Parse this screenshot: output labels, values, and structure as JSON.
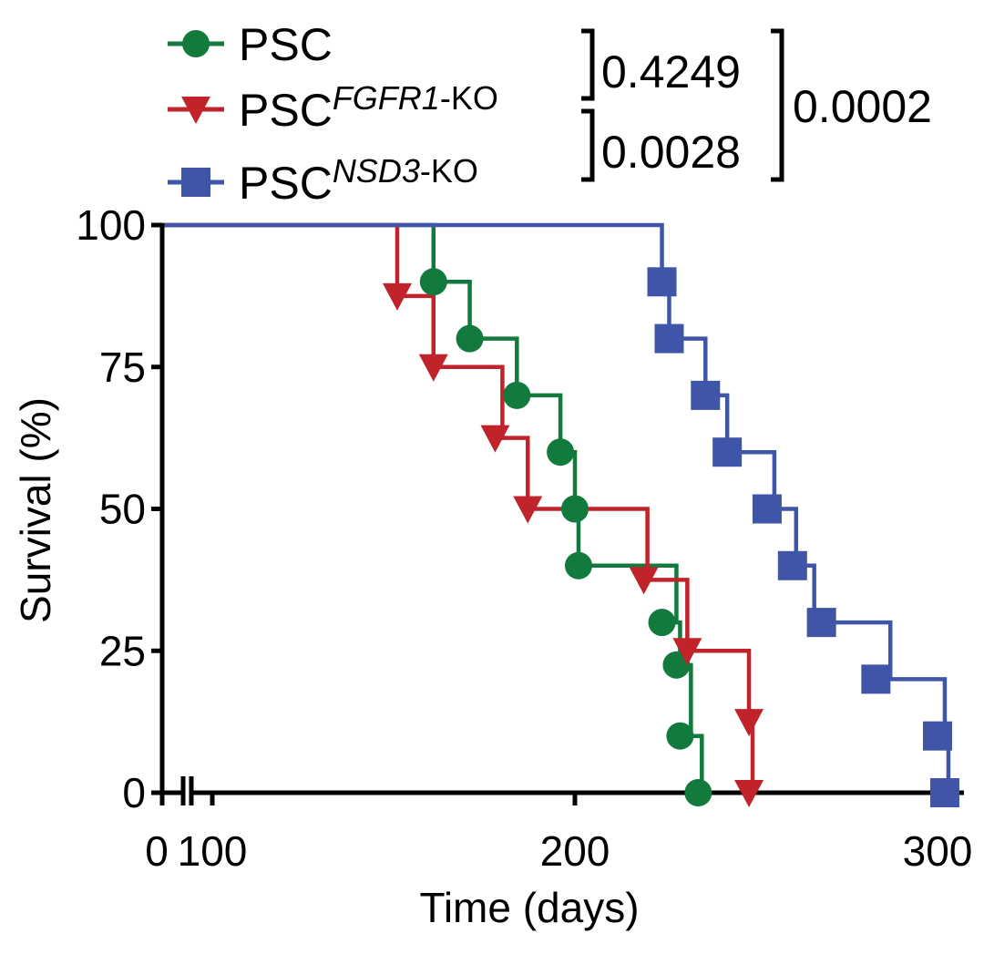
{
  "chart_data": {
    "type": "line",
    "subtype": "kaplan-meier-survival",
    "title": "",
    "xlabel": "Time (days)",
    "ylabel": "Survival (%)",
    "xlim": [
      0,
      310
    ],
    "ylim": [
      0,
      100
    ],
    "x_axis_break": [
      0,
      100
    ],
    "x_ticks": [
      0,
      100,
      200,
      300
    ],
    "x_tick_labels": [
      "0",
      "100",
      "200",
      "300"
    ],
    "y_ticks": [
      0,
      25,
      50,
      75,
      100
    ],
    "y_tick_labels": [
      "0",
      "25",
      "50",
      "75",
      "100"
    ],
    "grid": false,
    "legend_position": "top-left",
    "series": [
      {
        "name": "PSC",
        "label_main": "PSC",
        "label_super": "",
        "color": "#137a3e",
        "marker": "circle",
        "steps": [
          [
            0,
            100
          ],
          [
            161,
            90
          ],
          [
            171,
            80
          ],
          [
            184,
            70
          ],
          [
            196,
            60
          ],
          [
            200,
            50
          ],
          [
            201,
            40
          ],
          [
            228,
            30
          ],
          [
            229,
            22.5
          ],
          [
            232,
            10
          ],
          [
            235,
            0
          ]
        ],
        "markers": [
          [
            161,
            90
          ],
          [
            171,
            80
          ],
          [
            184,
            70
          ],
          [
            196,
            60
          ],
          [
            200,
            50
          ],
          [
            201,
            40
          ],
          [
            224,
            30
          ],
          [
            228,
            22.5
          ],
          [
            229,
            10
          ],
          [
            234,
            0
          ]
        ]
      },
      {
        "name": "PSC FGFR1-KO",
        "label_main": "PSC",
        "label_super": "FGFR1",
        "label_suffix": "-KO",
        "color": "#c1232b",
        "marker": "triangle-down",
        "steps": [
          [
            0,
            100
          ],
          [
            151,
            87.5
          ],
          [
            161,
            75
          ],
          [
            180,
            62.5
          ],
          [
            187,
            50
          ],
          [
            220,
            37.5
          ],
          [
            231,
            25
          ],
          [
            248,
            12.5
          ],
          [
            249,
            0
          ]
        ],
        "markers": [
          [
            151,
            87.5
          ],
          [
            161,
            75
          ],
          [
            178,
            62.5
          ],
          [
            187,
            50
          ],
          [
            219,
            37.5
          ],
          [
            231,
            25
          ],
          [
            248,
            12.5
          ],
          [
            248,
            0
          ]
        ]
      },
      {
        "name": "PSC NSD3-KO",
        "label_main": "PSC",
        "label_super": "NSD3",
        "label_suffix": "-KO",
        "color": "#3f56a8",
        "marker": "square",
        "steps": [
          [
            0,
            100
          ],
          [
            224,
            90
          ],
          [
            226,
            80
          ],
          [
            236,
            70
          ],
          [
            242,
            60
          ],
          [
            255,
            50
          ],
          [
            261,
            40
          ],
          [
            266,
            30
          ],
          [
            287,
            20
          ],
          [
            302,
            10
          ],
          [
            303,
            0
          ]
        ],
        "markers": [
          [
            224,
            90
          ],
          [
            226,
            80
          ],
          [
            236,
            70
          ],
          [
            242,
            60
          ],
          [
            253,
            50
          ],
          [
            260,
            40
          ],
          [
            268,
            30
          ],
          [
            283,
            20
          ],
          [
            300,
            10
          ],
          [
            302,
            0
          ]
        ]
      }
    ],
    "annotations": {
      "pvalues": [
        {
          "label": "0.4249",
          "compares": [
            "PSC",
            "PSC FGFR1-KO"
          ]
        },
        {
          "label": "0.0028",
          "compares": [
            "PSC FGFR1-KO",
            "PSC NSD3-KO"
          ]
        },
        {
          "label": "0.0002",
          "compares": [
            "PSC",
            "PSC NSD3-KO"
          ]
        }
      ]
    }
  }
}
